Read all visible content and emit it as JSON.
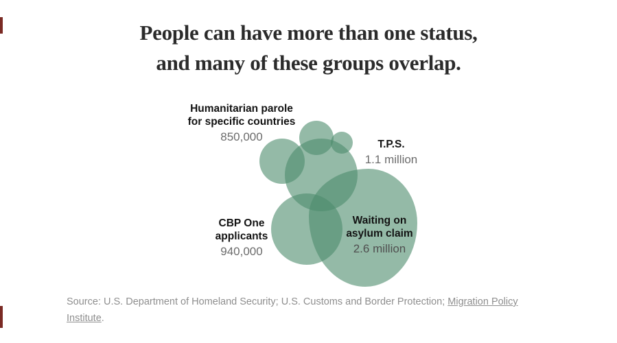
{
  "title": {
    "line1": "People can have more than one status,",
    "line2": "and many of these groups overlap."
  },
  "chart_data": {
    "type": "venn",
    "title": "People can have more than one status, and many of these groups overlap.",
    "groups": [
      {
        "name": "Humanitarian parole for specific countries",
        "value": 850000,
        "value_label": "850,000"
      },
      {
        "name": "T.P.S.",
        "value": 1100000,
        "value_label": "1.1 million"
      },
      {
        "name": "CBP One applicants",
        "value": 940000,
        "value_label": "940,000"
      },
      {
        "name": "Waiting on asylum claim",
        "value": 2600000,
        "value_label": "2.6 million"
      }
    ],
    "layout_hint": "cluster of overlapping translucent sage-green circles (Euler diagram); overlapping regions render darker; labels sit beside or on top of the shapes",
    "legend_position": "none",
    "bubble_color": "#4c8c6c",
    "bubble_opacity": 0.6
  },
  "labels": {
    "humanitarian": {
      "line1": "Humanitarian parole",
      "line2": "for specific countries",
      "value": "850,000"
    },
    "tps": {
      "line1": "T.P.S.",
      "value": "1.1 million"
    },
    "cbp": {
      "line1": "CBP One",
      "line2": "applicants",
      "value": "940,000"
    },
    "asylum": {
      "line1": "Waiting on",
      "line2": "asylum claim",
      "value": "2.6 million"
    }
  },
  "source": {
    "line1_text": "Source: U.S. Department of Homeland Security; U.S. Customs and Border Protection; ",
    "line1_link": "Migration Policy",
    "line2_link": "Institute",
    "line2_suffix": "."
  },
  "colors": {
    "bubble": "#4c8c6c",
    "label_text": "#121212",
    "value_text": "#6b6b6b",
    "title_text": "#2b2b2b",
    "source_text": "#8e8e8e",
    "edge_mark": "#7a2a24"
  }
}
